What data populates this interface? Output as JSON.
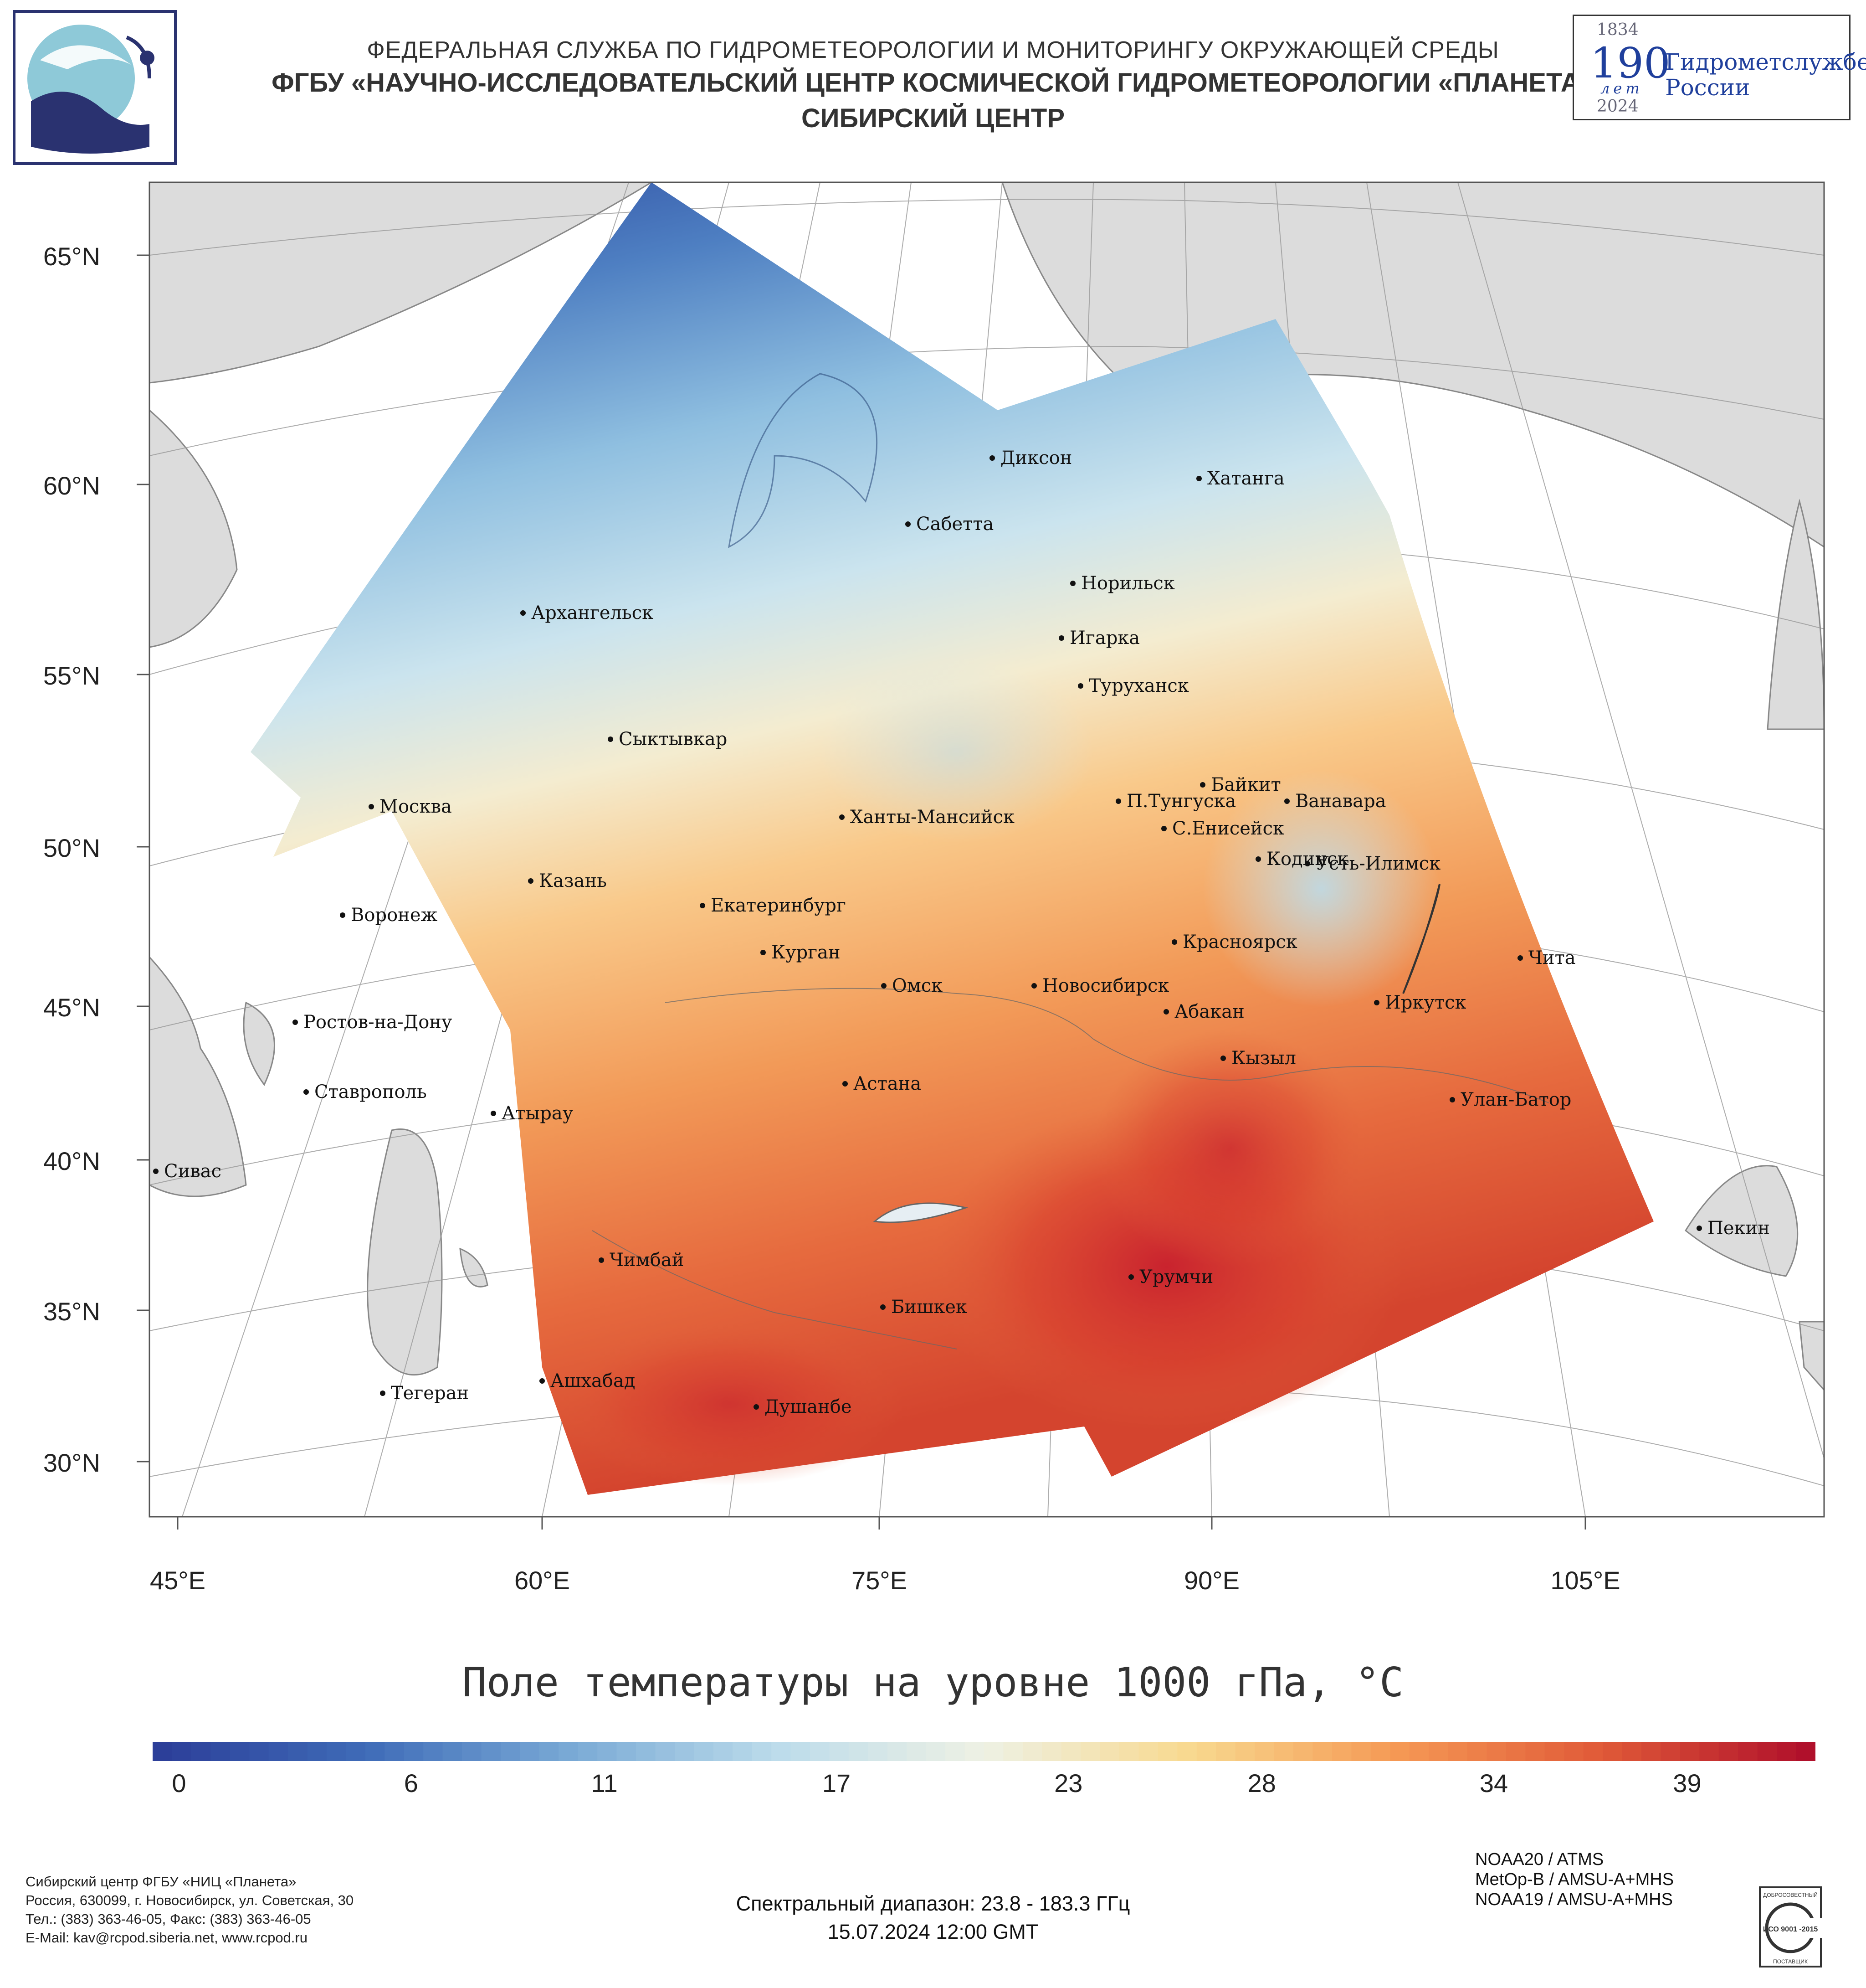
{
  "header": {
    "line1": "ФЕДЕРАЛЬНАЯ СЛУЖБА ПО ГИДРОМЕТЕОРОЛОГИИ И МОНИТОРИНГУ ОКРУЖАЮЩЕЙ СРЕДЫ",
    "line2": "ФГБУ «НАУЧНО-ИССЛЕДОВАТЕЛЬСКИЙ ЦЕНТР КОСМИЧЕСКОЙ ГИДРОМЕТЕОРОЛОГИИ «ПЛАНЕТА»",
    "line3": "СИБИРСКИЙ ЦЕНТР"
  },
  "anniversary_logo": {
    "year_start": "1834",
    "number": "190",
    "word": "лет",
    "year_end": "2024",
    "text_line1": "Гидрометслужбе",
    "text_line2": "России"
  },
  "axes": {
    "latitude_labels": [
      "65°N",
      "60°N",
      "55°N",
      "50°N",
      "45°N",
      "40°N",
      "35°N",
      "30°N"
    ],
    "longitude_labels": [
      "45°E",
      "60°E",
      "75°E",
      "90°E",
      "105°E"
    ]
  },
  "cities": [
    {
      "name": "Диксон"
    },
    {
      "name": "Хатанга"
    },
    {
      "name": "Сабетта"
    },
    {
      "name": "Норильск"
    },
    {
      "name": "Архангельск"
    },
    {
      "name": "Игарка"
    },
    {
      "name": "Туруханск"
    },
    {
      "name": "Сыктывкар"
    },
    {
      "name": "Байкит"
    },
    {
      "name": "Москва"
    },
    {
      "name": "П.Тунгуска"
    },
    {
      "name": "Ванавара"
    },
    {
      "name": "Ханты-Мансийск"
    },
    {
      "name": "С.Енисейск"
    },
    {
      "name": "Кодинск"
    },
    {
      "name": "Усть-Илимск"
    },
    {
      "name": "Казань"
    },
    {
      "name": "Воронеж"
    },
    {
      "name": "Екатеринбург"
    },
    {
      "name": "Красноярск"
    },
    {
      "name": "Курган"
    },
    {
      "name": "Чита"
    },
    {
      "name": "Омск"
    },
    {
      "name": "Новосибирск"
    },
    {
      "name": "Иркутск"
    },
    {
      "name": "Ростов-на-Дону"
    },
    {
      "name": "Абакан"
    },
    {
      "name": "Кызыл"
    },
    {
      "name": "Ставрополь"
    },
    {
      "name": "Астана"
    },
    {
      "name": "Улан-Батор"
    },
    {
      "name": "Атырау"
    },
    {
      "name": "Сивас"
    },
    {
      "name": "Пекин"
    },
    {
      "name": "Чимбай"
    },
    {
      "name": "Урумчи"
    },
    {
      "name": "Бишкек"
    },
    {
      "name": "Ашхабад"
    },
    {
      "name": "Тегеран"
    },
    {
      "name": "Душанбе"
    }
  ],
  "title": "Поле температуры на уровне 1000 гПа, °С",
  "colorbar": {
    "min": 0,
    "max": 43,
    "tick_values": [
      "0",
      "6",
      "11",
      "17",
      "23",
      "28",
      "34",
      "39"
    ],
    "colors": [
      "#2c3f99",
      "#3f6cb8",
      "#7aaad6",
      "#bcdceb",
      "#eef1e4",
      "#f8d98f",
      "#f59a55",
      "#e05a38",
      "#b0102b"
    ]
  },
  "footer": {
    "org_lines": [
      "Сибирский центр ФГБУ «НИЦ «Планета»",
      "Россия, 630099, г. Новосибирск, ул. Советская, 30",
      "Тел.: (383) 363-46-05, Факс: (383) 363-46-05",
      "E-Mail: kav@rcpod.siberia.net, www.rcpod.ru"
    ],
    "spectral_range": "Спектральный диапазон: 23.8 - 183.3 ГГц",
    "datetime": "15.07.2024 12:00 GMT",
    "sensors": [
      "NOAA20 / ATMS",
      "MetOp-B / AMSU-A+MHS",
      "NOAA19 / AMSU-A+MHS"
    ],
    "iso_badge": {
      "top": "ДОБРОСОВЕСТНЫЙ",
      "middle": "ИСО 9001 -2015",
      "bottom": "ПОСТАВЩИК"
    }
  }
}
